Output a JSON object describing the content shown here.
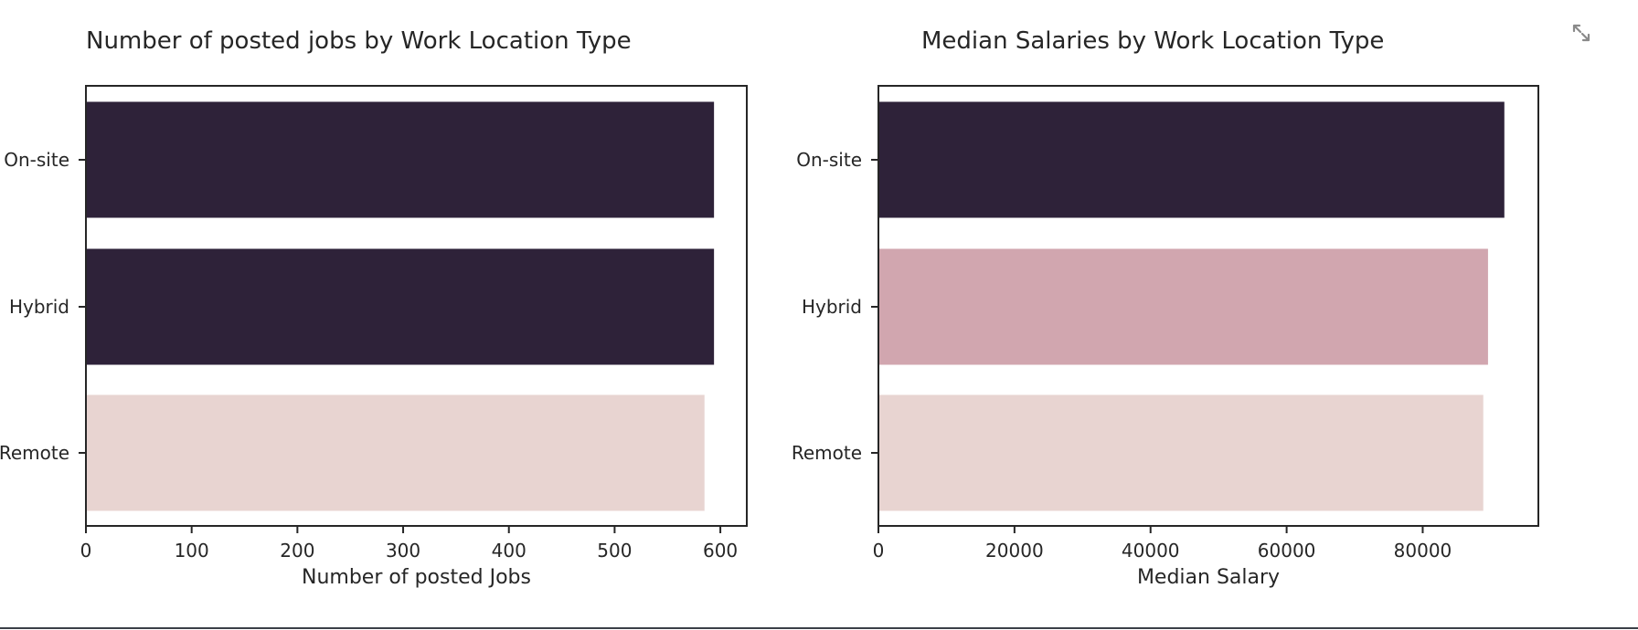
{
  "chart_data": [
    {
      "type": "bar",
      "orientation": "horizontal",
      "title": "Number of posted jobs by Work Location Type",
      "xlabel": "Number of posted Jobs",
      "ylabel": "",
      "categories": [
        "On-site",
        "Hybrid",
        "Remote"
      ],
      "values": [
        594,
        594,
        585
      ],
      "bar_colors": [
        "#2e2239",
        "#2e2239",
        "#e8d4d1"
      ],
      "xlim": [
        0,
        625
      ],
      "xticks": [
        0,
        100,
        200,
        300,
        400,
        500,
        600
      ],
      "grid": false,
      "legend": "none"
    },
    {
      "type": "bar",
      "orientation": "horizontal",
      "title": "Median Salaries by Work Location Type",
      "xlabel": "Median Salary",
      "ylabel": "",
      "categories": [
        "On-site",
        "Hybrid",
        "Remote"
      ],
      "values": [
        92000,
        89600,
        88900
      ],
      "bar_colors": [
        "#2e2239",
        "#d1a6af",
        "#e8d4d1"
      ],
      "xlim": [
        0,
        97000
      ],
      "xticks": [
        0,
        20000,
        40000,
        60000,
        80000
      ],
      "grid": false,
      "legend": "none"
    }
  ],
  "icons": {
    "expand": "expand-icon"
  },
  "colors": {
    "axis": "#262626",
    "text": "#262626",
    "icon": "#8a8a8a"
  }
}
